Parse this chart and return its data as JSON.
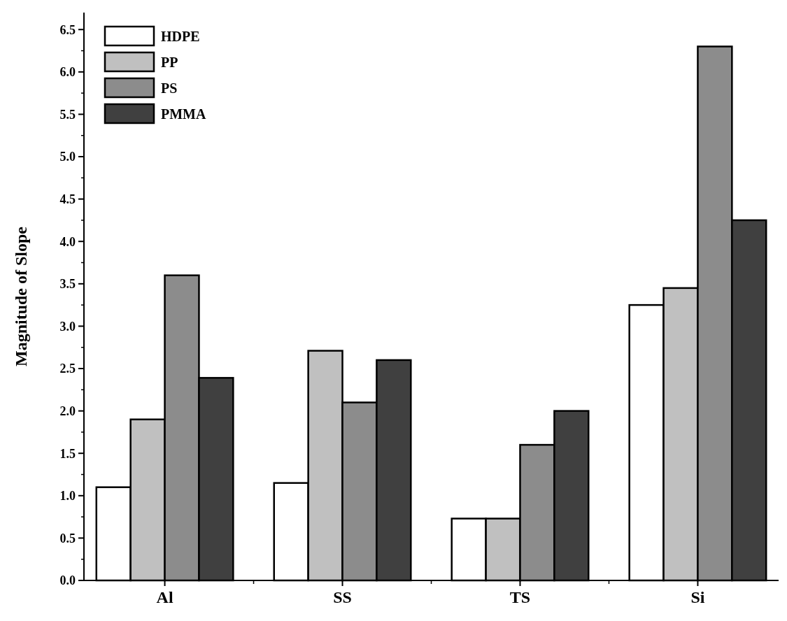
{
  "chart_data": {
    "type": "bar",
    "ylabel": "Magnitude of Slope",
    "categories": [
      "Al",
      "SS",
      "TS",
      "Si"
    ],
    "series": [
      {
        "name": "HDPE",
        "color": "#ffffff",
        "values": [
          1.1,
          1.15,
          0.73,
          3.25
        ]
      },
      {
        "name": "PP",
        "color": "#c0c0c0",
        "values": [
          1.9,
          2.71,
          0.73,
          3.45
        ]
      },
      {
        "name": "PS",
        "color": "#8c8c8c",
        "values": [
          3.6,
          2.1,
          1.6,
          6.3
        ]
      },
      {
        "name": "PMMA",
        "color": "#404040",
        "values": [
          2.39,
          2.6,
          2.0,
          4.25
        ]
      }
    ],
    "ylim": [
      0,
      6.7
    ],
    "yticks": [
      {
        "value": 0,
        "label": "0.0"
      },
      {
        "value": 0.5,
        "label": "0.5"
      },
      {
        "value": 1,
        "label": "1.0"
      },
      {
        "value": 1.5,
        "label": "1.5"
      },
      {
        "value": 2,
        "label": "2.0"
      },
      {
        "value": 2.5,
        "label": "2.5"
      },
      {
        "value": 3,
        "label": "3.0"
      },
      {
        "value": 3.5,
        "label": "3.5"
      },
      {
        "value": 4,
        "label": "4.0"
      },
      {
        "value": 4.5,
        "label": "4.5"
      },
      {
        "value": 5,
        "label": "5.0"
      },
      {
        "value": 5.5,
        "label": "5.5"
      },
      {
        "value": 6,
        "label": "6.0"
      },
      {
        "value": 6.5,
        "label": "6.5"
      }
    ],
    "legend": "top left",
    "grid": false
  }
}
